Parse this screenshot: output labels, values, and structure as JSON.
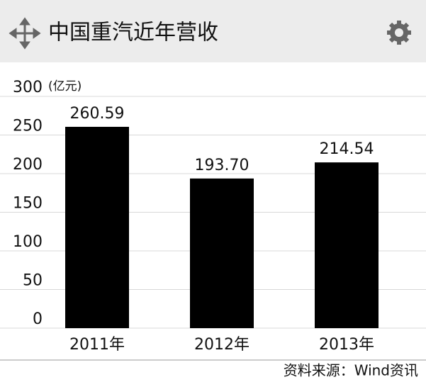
{
  "chart_data": {
    "type": "bar",
    "title": "中国重汽近年营收",
    "y_unit": "(亿元)",
    "categories": [
      "2011年",
      "2012年",
      "2013年"
    ],
    "values": [
      260.59,
      193.7,
      214.54
    ],
    "value_labels": [
      "260.59",
      "193.70",
      "214.54"
    ],
    "color": "#000000",
    "ylim": [
      0,
      300
    ],
    "yticks": [
      0,
      50,
      100,
      150,
      200,
      250,
      300
    ],
    "grid": true,
    "source": "资料来源：Wind资讯"
  }
}
